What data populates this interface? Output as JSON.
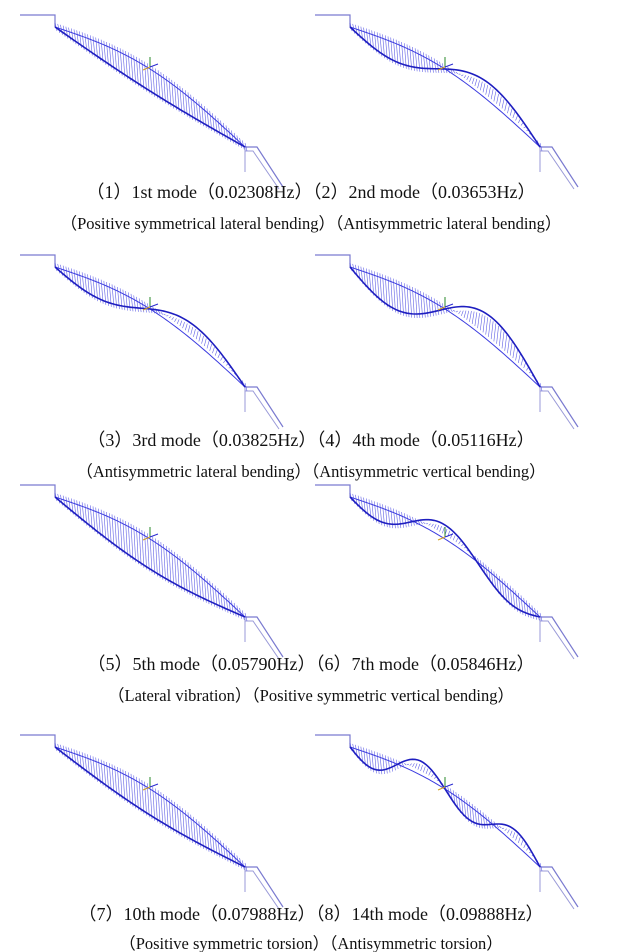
{
  "figure": {
    "rows": [
      {
        "lines": [
          "（1）1st mode（0.02308Hz）（2）2nd mode（0.03653Hz）",
          "（Positive symmetrical lateral bending）（Antisymmetric lateral bending）"
        ]
      },
      {
        "lines": [
          "（3）3rd mode（0.03825Hz）（4）4th mode（0.05116Hz）",
          "（Antisymmetric lateral bending）（Antisymmetric vertical bending）"
        ]
      },
      {
        "lines": [
          "（5）5th mode（0.05790Hz）（6）7th mode（0.05846Hz）",
          "（Lateral vibration）（Positive symmetric vertical bending）"
        ]
      },
      {
        "lines": [
          "（7）10th mode（0.07988Hz）（8）14th mode（0.09888Hz）",
          "（Positive symmetric torsion）（Antisymmetric torsion）"
        ]
      }
    ]
  }
}
